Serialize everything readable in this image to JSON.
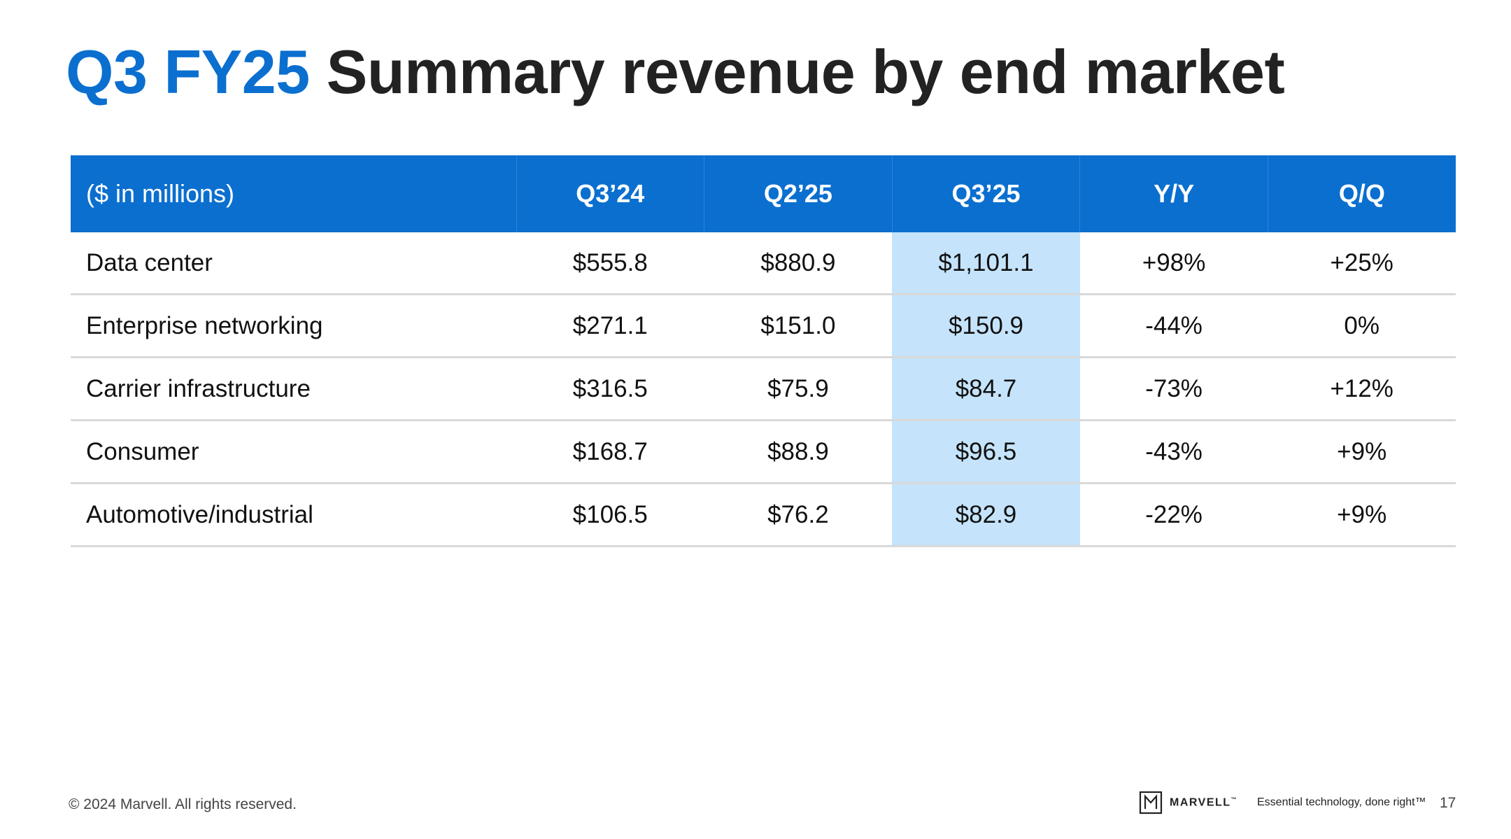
{
  "title": {
    "accent": "Q3 FY25",
    "rest": "Summary revenue by end market"
  },
  "table": {
    "headers": [
      "($ in millions)",
      "Q3’24",
      "Q2’25",
      "Q3’25",
      "Y/Y",
      "Q/Q"
    ],
    "highlight_column": 3,
    "highlight_color": "#c5e4fb",
    "header_color": "#0b6fcf",
    "rows": [
      [
        "Data center",
        "$555.8",
        "$880.9",
        "$1,101.1",
        "+98%",
        "+25%"
      ],
      [
        "Enterprise networking",
        "$271.1",
        "$151.0",
        "$150.9",
        "-44%",
        "0%"
      ],
      [
        "Carrier infrastructure",
        "$316.5",
        "$75.9",
        "$84.7",
        "-73%",
        "+12%"
      ],
      [
        "Consumer",
        "$168.7",
        "$88.9",
        "$96.5",
        "-43%",
        "+9%"
      ],
      [
        "Automotive/industrial",
        "$106.5",
        "$76.2",
        "$82.9",
        "-22%",
        "+9%"
      ]
    ]
  },
  "footer": {
    "copyright": "© 2024 Marvell. All rights reserved.",
    "brand": "MARVELL",
    "brand_mark": "trademark",
    "tagline": "Essential technology, done right™",
    "page_number": "17",
    "logo_icon": "marvell-logo-icon"
  }
}
